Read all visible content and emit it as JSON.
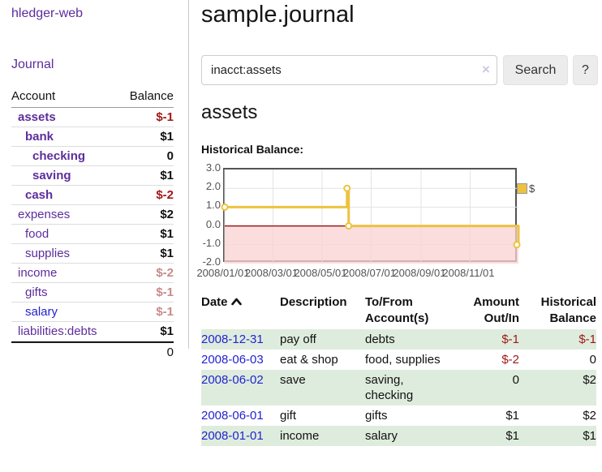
{
  "brand": "hledger-web",
  "nav": {
    "journal": "Journal"
  },
  "sidebar": {
    "headers": {
      "account": "Account",
      "balance": "Balance"
    },
    "accounts": [
      {
        "name": "assets",
        "indent": 0,
        "bold": true,
        "color": "purple",
        "balance": "$-1",
        "balance_style": "neg"
      },
      {
        "name": "bank",
        "indent": 1,
        "bold": true,
        "color": "purple",
        "balance": "$1",
        "balance_style": "pos"
      },
      {
        "name": "checking",
        "indent": 2,
        "bold": true,
        "color": "purple",
        "balance": "0",
        "balance_style": "pos"
      },
      {
        "name": "saving",
        "indent": 2,
        "bold": true,
        "color": "purple",
        "balance": "$1",
        "balance_style": "pos"
      },
      {
        "name": "cash",
        "indent": 1,
        "bold": true,
        "color": "purple",
        "balance": "$-2",
        "balance_style": "neg"
      },
      {
        "name": "expenses",
        "indent": 0,
        "bold": false,
        "color": "purple",
        "balance": "$2",
        "balance_style": "pos"
      },
      {
        "name": "food",
        "indent": 1,
        "bold": false,
        "color": "purple",
        "balance": "$1",
        "balance_style": "pos"
      },
      {
        "name": "supplies",
        "indent": 1,
        "bold": false,
        "color": "purple",
        "balance": "$1",
        "balance_style": "pos"
      },
      {
        "name": "income",
        "indent": 0,
        "bold": false,
        "color": "purple",
        "balance": "$-2",
        "balance_style": "neg-muted"
      },
      {
        "name": "gifts",
        "indent": 1,
        "bold": false,
        "color": "purple",
        "balance": "$-1",
        "balance_style": "neg-muted"
      },
      {
        "name": "salary",
        "indent": 1,
        "bold": false,
        "color": "blue",
        "balance": "$-1",
        "balance_style": "neg-muted"
      },
      {
        "name": "liabilities:debts",
        "indent": 0,
        "bold": false,
        "color": "purple",
        "balance": "$1",
        "balance_style": "pos"
      }
    ],
    "total": "0"
  },
  "page": {
    "title": "sample.journal",
    "account_heading": "assets",
    "chart_title": "Historical Balance:"
  },
  "search": {
    "value": "inacct:assets",
    "clear_icon": "×",
    "button": "Search",
    "help": "?"
  },
  "colors": {
    "accent_purple": "#5c2d9c",
    "link_blue": "#2323d0",
    "negative_red": "#a11818",
    "negative_muted": "#c88a8a",
    "row_green": "#deecdd",
    "series_gold": "#edc240",
    "zero_line": "#8b0000",
    "negative_region": "#f9d2d2"
  },
  "chart_data": {
    "type": "line",
    "title": "Historical Balance",
    "step": true,
    "x_range": [
      "2008-01-01",
      "2008-12-31"
    ],
    "ylim": [
      -2,
      3
    ],
    "y_ticks": [
      {
        "value": 3,
        "label": "3.0"
      },
      {
        "value": 2,
        "label": "2.0"
      },
      {
        "value": 1,
        "label": "1.0"
      },
      {
        "value": 0,
        "label": "0.0"
      },
      {
        "value": -1,
        "label": "-1.0"
      },
      {
        "value": -2,
        "label": "-2.0"
      }
    ],
    "x_ticks": [
      {
        "date": "2008-01-01",
        "label": "2008/01/01"
      },
      {
        "date": "2008-03-01",
        "label": "2008/03/01"
      },
      {
        "date": "2008-05-01",
        "label": "2008/05/01"
      },
      {
        "date": "2008-07-01",
        "label": "2008/07/01"
      },
      {
        "date": "2008-09-01",
        "label": "2008/09/01"
      },
      {
        "date": "2008-11-01",
        "label": "2008/11/01"
      }
    ],
    "legend": {
      "label": "$",
      "position": "top-right"
    },
    "grid": true,
    "series": [
      {
        "name": "$",
        "color": "#edc240",
        "points": [
          {
            "date": "2008-01-01",
            "value": 1
          },
          {
            "date": "2008-06-01",
            "value": 2
          },
          {
            "date": "2008-06-03",
            "value": 0
          },
          {
            "date": "2008-12-31",
            "value": -1
          }
        ]
      }
    ]
  },
  "register": {
    "columns": [
      {
        "label": "Date",
        "sort": "asc"
      },
      {
        "label": "Description"
      },
      {
        "label": "To/From Account(s)"
      },
      {
        "label": "Amount Out/In",
        "align": "right"
      },
      {
        "label": "Historical Balance",
        "align": "right"
      }
    ],
    "rows": [
      {
        "date": "2008-12-31",
        "description": "pay off",
        "accounts": "debts",
        "amount": "$-1",
        "amount_neg": true,
        "balance": "$-1",
        "balance_neg": true
      },
      {
        "date": "2008-06-03",
        "description": "eat & shop",
        "accounts": "food, supplies",
        "amount": "$-2",
        "amount_neg": true,
        "balance": "0",
        "balance_neg": false
      },
      {
        "date": "2008-06-02",
        "description": "save",
        "accounts": "saving,\nchecking",
        "amount": "0",
        "amount_neg": false,
        "balance": "$2",
        "balance_neg": false
      },
      {
        "date": "2008-06-01",
        "description": "gift",
        "accounts": "gifts",
        "amount": "$1",
        "amount_neg": false,
        "balance": "$2",
        "balance_neg": false
      },
      {
        "date": "2008-01-01",
        "description": "income",
        "accounts": "salary",
        "amount": "$1",
        "amount_neg": false,
        "balance": "$1",
        "balance_neg": false
      }
    ]
  }
}
